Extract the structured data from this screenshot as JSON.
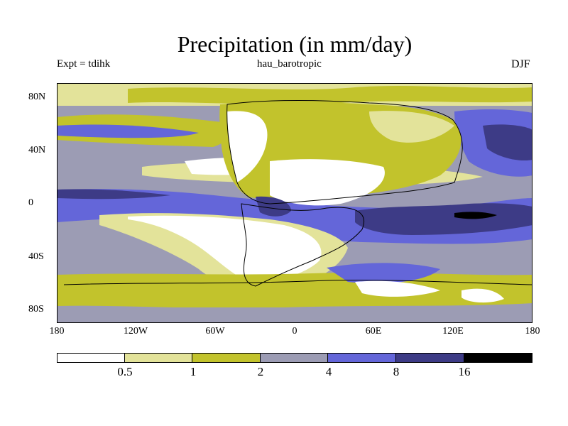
{
  "title": "Precipitation (in mm/day)",
  "subtitle_left": "Expt = tdihk",
  "subtitle_center": "hau_barotropic",
  "subtitle_right": "DJF",
  "axes": {
    "lat_labels": [
      "80N",
      "40N",
      "0",
      "40S",
      "80S"
    ],
    "lon_labels": [
      "180",
      "120W",
      "60W",
      "0",
      "60E",
      "120E",
      "180"
    ]
  },
  "colorbar": {
    "labels": [
      "0.5",
      "1",
      "2",
      "4",
      "8",
      "16"
    ],
    "colors": [
      "#ffffff",
      "#e3e39a",
      "#c2c32c",
      "#9c9cb4",
      "#6466d9",
      "#3d3b86",
      "#000000"
    ]
  },
  "chart_data": {
    "type": "heatmap",
    "title": "Precipitation (in mm/day)",
    "field": "precipitation",
    "units": "mm/day",
    "season": "DJF",
    "experiment": "tdihk",
    "case": "hau_barotropic",
    "levels": [
      0.5,
      1,
      2,
      4,
      8,
      16
    ],
    "xlim": [
      -180,
      180
    ],
    "ylim": [
      -90,
      90
    ]
  }
}
